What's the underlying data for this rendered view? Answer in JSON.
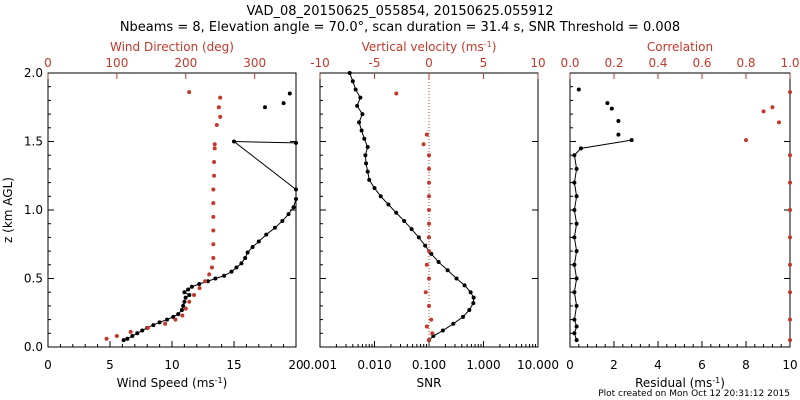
{
  "title_line1": "VAD_08_20150625_055854, 20150625.055912",
  "title_line2": "Nbeams = 8, Elevation angle = 70.0°, scan duration = 31.4 s, SNR Threshold = 0.008",
  "footer": "Plot created on Mon Oct 12 20:31:12 2015",
  "colors": {
    "primary": "#000000",
    "secondary": "#c0392b"
  },
  "chart_data": [
    {
      "type": "scatter",
      "ylabel": "z (km AGL)",
      "ylim": [
        0,
        2.0
      ],
      "yticks": [
        "0.0",
        "0.5",
        "1.0",
        "1.5",
        "2.0"
      ],
      "bottom_axis": {
        "label_main": "Wind Speed (ms",
        "label_sup": "-1",
        "label_end": ")",
        "range": [
          0,
          20
        ],
        "ticks": [
          "0",
          "5",
          "10",
          "15",
          "20"
        ]
      },
      "top_axis": {
        "label": "Wind Direction (deg)",
        "range": [
          0,
          360
        ],
        "ticks": [
          "0",
          "100",
          "200",
          "300"
        ]
      },
      "series": [
        {
          "axis": "bottom",
          "style": "line-marker",
          "points": [
            [
              6.1,
              0.05
            ],
            [
              6.4,
              0.06
            ],
            [
              6.8,
              0.08
            ],
            [
              7.2,
              0.1
            ],
            [
              7.6,
              0.12
            ],
            [
              8.0,
              0.14
            ],
            [
              8.5,
              0.16
            ],
            [
              9.0,
              0.18
            ],
            [
              9.6,
              0.2
            ],
            [
              10.1,
              0.22
            ],
            [
              10.5,
              0.24
            ],
            [
              10.8,
              0.27
            ],
            [
              10.9,
              0.3
            ],
            [
              11.0,
              0.33
            ],
            [
              11.1,
              0.36
            ],
            [
              11.4,
              0.38
            ],
            [
              11.0,
              0.4
            ],
            [
              11.3,
              0.42
            ],
            [
              11.6,
              0.44
            ],
            [
              12.2,
              0.46
            ],
            [
              12.9,
              0.48
            ],
            [
              13.5,
              0.5
            ],
            [
              14.2,
              0.52
            ],
            [
              14.8,
              0.55
            ],
            [
              15.2,
              0.58
            ],
            [
              15.6,
              0.61
            ],
            [
              15.9,
              0.65
            ],
            [
              16.1,
              0.69
            ],
            [
              16.5,
              0.73
            ],
            [
              17.0,
              0.77
            ],
            [
              17.6,
              0.82
            ],
            [
              18.3,
              0.87
            ],
            [
              18.9,
              0.92
            ],
            [
              19.4,
              0.97
            ],
            [
              19.8,
              1.02
            ],
            [
              20.0,
              1.08
            ],
            [
              20.0,
              1.15
            ],
            [
              15.0,
              1.5
            ],
            [
              20.0,
              1.49
            ]
          ]
        },
        {
          "axis": "bottom",
          "style": "marker",
          "points": [
            [
              17.5,
              1.75
            ],
            [
              19.5,
              1.85
            ],
            [
              19.0,
              1.78
            ]
          ]
        },
        {
          "axis": "top",
          "style": "marker",
          "points": [
            [
              85,
              0.06
            ],
            [
              100,
              0.08
            ],
            [
              120,
              0.11
            ],
            [
              145,
              0.14
            ],
            [
              170,
              0.17
            ],
            [
              185,
              0.2
            ],
            [
              195,
              0.23
            ],
            [
              200,
              0.28
            ],
            [
              205,
              0.33
            ],
            [
              212,
              0.38
            ],
            [
              220,
              0.43
            ],
            [
              228,
              0.48
            ],
            [
              234,
              0.53
            ],
            [
              238,
              0.58
            ],
            [
              240,
              0.65
            ],
            [
              240,
              0.75
            ],
            [
              240,
              0.85
            ],
            [
              240,
              0.95
            ],
            [
              240,
              1.05
            ],
            [
              240,
              1.15
            ],
            [
              241,
              1.25
            ],
            [
              241,
              1.35
            ],
            [
              242,
              1.45
            ],
            [
              242,
              1.48
            ],
            [
              245,
              1.62
            ],
            [
              250,
              1.68
            ],
            [
              248,
              1.75
            ],
            [
              250,
              1.82
            ],
            [
              205,
              1.86
            ]
          ]
        }
      ]
    },
    {
      "type": "scatter",
      "ylim": [
        0,
        2.0
      ],
      "bottom_axis": {
        "label_main": "SNR",
        "label_sup": "",
        "label_end": "",
        "scale": "log",
        "range": [
          0.001,
          10
        ],
        "ticks": [
          "0.001",
          "0.010",
          "0.100",
          "1.000",
          "10.000"
        ]
      },
      "top_axis": {
        "label": "Vertical velocity (ms",
        "label_sup": "-1",
        "label_end": ")",
        "range": [
          -10,
          10
        ],
        "ticks": [
          "-10",
          "-5",
          "0",
          "5",
          "10"
        ]
      },
      "series": [
        {
          "axis": "bottom",
          "style": "line-marker",
          "points": [
            [
              0.1,
              0.05
            ],
            [
              0.12,
              0.08
            ],
            [
              0.18,
              0.12
            ],
            [
              0.28,
              0.17
            ],
            [
              0.42,
              0.22
            ],
            [
              0.55,
              0.27
            ],
            [
              0.65,
              0.32
            ],
            [
              0.66,
              0.36
            ],
            [
              0.58,
              0.4
            ],
            [
              0.45,
              0.45
            ],
            [
              0.32,
              0.5
            ],
            [
              0.22,
              0.56
            ],
            [
              0.15,
              0.62
            ],
            [
              0.11,
              0.68
            ],
            [
              0.085,
              0.74
            ],
            [
              0.065,
              0.8
            ],
            [
              0.048,
              0.86
            ],
            [
              0.035,
              0.92
            ],
            [
              0.025,
              0.98
            ],
            [
              0.018,
              1.04
            ],
            [
              0.013,
              1.1
            ],
            [
              0.01,
              1.16
            ],
            [
              0.008,
              1.22
            ],
            [
              0.0075,
              1.28
            ],
            [
              0.007,
              1.34
            ],
            [
              0.0068,
              1.4
            ],
            [
              0.0075,
              1.46
            ],
            [
              0.0065,
              1.52
            ],
            [
              0.0058,
              1.58
            ],
            [
              0.0052,
              1.64
            ],
            [
              0.006,
              1.7
            ],
            [
              0.0048,
              1.76
            ],
            [
              0.0055,
              1.82
            ],
            [
              0.0045,
              1.88
            ],
            [
              0.004,
              1.94
            ],
            [
              0.0035,
              2.0
            ]
          ]
        },
        {
          "axis": "top",
          "style": "marker",
          "points": [
            [
              0,
              0.05
            ],
            [
              0.3,
              0.1
            ],
            [
              -0.2,
              0.15
            ],
            [
              0.2,
              0.2
            ],
            [
              0,
              0.3
            ],
            [
              -0.3,
              0.4
            ],
            [
              0,
              0.5
            ],
            [
              -0.2,
              0.6
            ],
            [
              0,
              0.7
            ],
            [
              0,
              0.8
            ],
            [
              0,
              0.9
            ],
            [
              0,
              1.0
            ],
            [
              0,
              1.1
            ],
            [
              0,
              1.2
            ],
            [
              0,
              1.3
            ],
            [
              0,
              1.4
            ],
            [
              -0.5,
              1.48
            ],
            [
              -0.2,
              1.55
            ],
            [
              -3,
              1.85
            ]
          ]
        }
      ]
    },
    {
      "type": "scatter",
      "ylim": [
        0,
        2.0
      ],
      "bottom_axis": {
        "label_main": "Residual (ms",
        "label_sup": "-1",
        "label_end": ")",
        "range": [
          0,
          10
        ],
        "ticks": [
          "0",
          "2",
          "4",
          "6",
          "8",
          "10"
        ]
      },
      "top_axis": {
        "label": "Correlation",
        "range": [
          0,
          1.0
        ],
        "ticks": [
          "0.0",
          "0.2",
          "0.4",
          "0.6",
          "0.8",
          "1.0"
        ]
      },
      "series": [
        {
          "axis": "bottom",
          "style": "line-marker",
          "points": [
            [
              0.3,
              0.05
            ],
            [
              0.2,
              0.1
            ],
            [
              0.3,
              0.15
            ],
            [
              0.2,
              0.2
            ],
            [
              0.3,
              0.3
            ],
            [
              0.2,
              0.4
            ],
            [
              0.3,
              0.5
            ],
            [
              0.2,
              0.6
            ],
            [
              0.3,
              0.7
            ],
            [
              0.2,
              0.8
            ],
            [
              0.3,
              0.9
            ],
            [
              0.2,
              1.0
            ],
            [
              0.3,
              1.1
            ],
            [
              0.2,
              1.2
            ],
            [
              0.3,
              1.3
            ],
            [
              0.2,
              1.4
            ],
            [
              0.5,
              1.45
            ],
            [
              2.8,
              1.51
            ]
          ]
        },
        {
          "axis": "bottom",
          "style": "marker",
          "points": [
            [
              1.7,
              1.78
            ],
            [
              1.9,
              1.74
            ],
            [
              2.2,
              1.65
            ],
            [
              2.2,
              1.55
            ],
            [
              0.4,
              1.88
            ]
          ]
        },
        {
          "axis": "top",
          "style": "marker",
          "points": [
            [
              1.0,
              0.05
            ],
            [
              1.0,
              0.2
            ],
            [
              1.0,
              0.4
            ],
            [
              1.0,
              0.6
            ],
            [
              1.0,
              0.8
            ],
            [
              1.0,
              1.0
            ],
            [
              1.0,
              1.2
            ],
            [
              1.0,
              1.4
            ],
            [
              0.8,
              1.51
            ],
            [
              0.88,
              1.72
            ],
            [
              0.92,
              1.75
            ],
            [
              0.95,
              1.64
            ],
            [
              1.0,
              1.86
            ]
          ]
        }
      ]
    }
  ]
}
